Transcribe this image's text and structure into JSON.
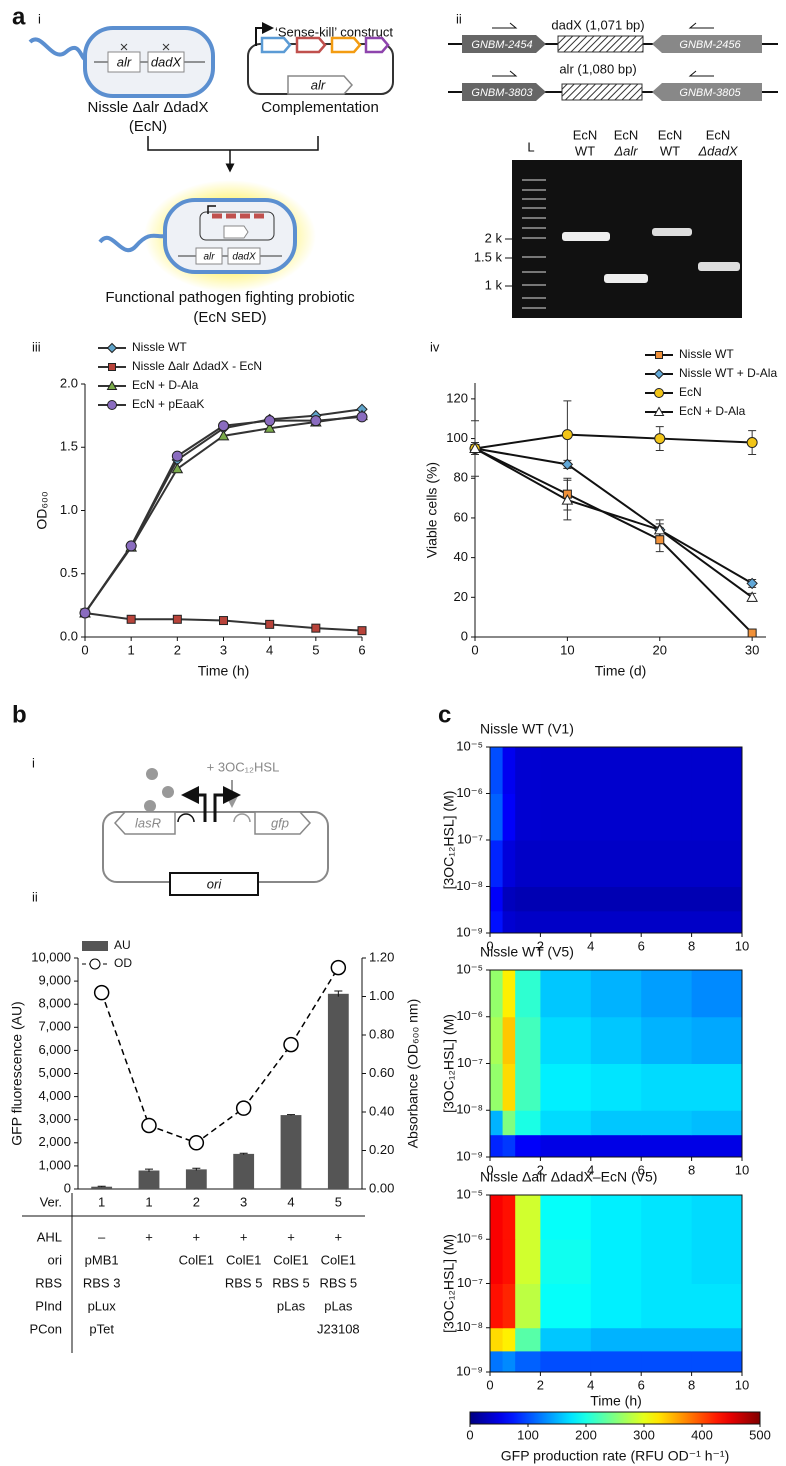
{
  "figure": {
    "panel_labels": [
      "a",
      "b",
      "c"
    ],
    "a_i": {
      "label": "i",
      "chromosome_genes": [
        "alr",
        "dadX"
      ],
      "strain": "Nissle Δalr ΔdadX",
      "strain_short": "(EcN)",
      "construct": "‘Sense-kill’ construct",
      "construct_gene": "alr",
      "complementation": "Complementation",
      "result_genes": [
        "alr",
        "dadX"
      ],
      "result": "Functional pathogen fighting probiotic",
      "result_short": "(EcN SED)"
    },
    "a_ii": {
      "label": "ii",
      "loci": [
        {
          "insert": "dadX (1,071 bp)",
          "left": "GNBM-2454",
          "right": "GNBM-2456"
        },
        {
          "insert": "alr (1,080 bp)",
          "left": "GNBM-3803",
          "right": "GNBM-3805"
        }
      ],
      "lanes": [
        [
          "L"
        ],
        [
          "EcN",
          "WT"
        ],
        [
          "EcN",
          "Δalr"
        ],
        [
          "EcN",
          "WT"
        ],
        [
          "EcN",
          "ΔdadX"
        ]
      ],
      "markers": [
        "2 k",
        "1.5 k",
        "1 k"
      ]
    },
    "a_iii": "iii",
    "a_iv": "iv",
    "b_i": {
      "label": "i",
      "inducer": "+ 3OC₁₂HSL",
      "genes": [
        "lasR",
        "gfp"
      ],
      "origin": "ori"
    },
    "b_ii": "ii"
  },
  "chart_data": [
    {
      "type": "line",
      "xlabel": "Time (h)",
      "ylabel": "OD₆₀₀",
      "legend": "upper left",
      "line_color": "#333333",
      "x": [
        0,
        1,
        2,
        3,
        4,
        5,
        6
      ],
      "xlim": [
        0,
        6
      ],
      "xticks": [
        0,
        1,
        2,
        3,
        4,
        5,
        6
      ],
      "ylim": [
        0,
        2
      ],
      "yticks": [
        {
          "value": 0,
          "label": "0.0"
        },
        0.5,
        {
          "value": 1,
          "label": "1.0"
        },
        1.5,
        {
          "value": 2,
          "label": "2.0"
        }
      ],
      "series": [
        {
          "name": "Nissle WT",
          "color": "#5fa3c9",
          "marker": "diamond",
          "values": [
            0.19,
            0.72,
            1.4,
            1.65,
            1.72,
            1.75,
            1.8
          ]
        },
        {
          "name": "Nissle Δalr ΔdadX - EcN",
          "color": "#b8433a",
          "marker": "square",
          "values": [
            0.19,
            0.14,
            0.14,
            0.13,
            0.1,
            0.07,
            0.05
          ]
        },
        {
          "name": "EcN + D-Ala",
          "color": "#7aab4a",
          "marker": "triangle",
          "values": [
            0.19,
            0.71,
            1.33,
            1.59,
            1.65,
            1.7,
            1.75
          ]
        },
        {
          "name": "EcN + pEaaK",
          "color": "#8a6cbf",
          "marker": "circle",
          "values": [
            0.19,
            0.72,
            1.43,
            1.67,
            1.71,
            1.71,
            1.74
          ]
        }
      ]
    },
    {
      "type": "line",
      "xlabel": "Time (d)",
      "ylabel": "Viable cells (%)",
      "legend": "upper right",
      "line_color": "#111111",
      "x": [
        0,
        10,
        20,
        30
      ],
      "xlim": [
        0,
        31.5
      ],
      "xticks": [
        0,
        10,
        20,
        30
      ],
      "ylim": [
        0,
        128
      ],
      "yticks": [
        0,
        20,
        40,
        60,
        80,
        100,
        120
      ],
      "series": [
        {
          "name": "Nissle WT",
          "color": "#f0913a",
          "marker": "square",
          "values": [
            95,
            72,
            49,
            2
          ],
          "errors": [
            3,
            8,
            6,
            1
          ]
        },
        {
          "name": "Nissle WT + D-Ala",
          "color": "#62a8d8",
          "marker": "diamond",
          "values": [
            95,
            87,
            54,
            27
          ],
          "errors": [
            2,
            2,
            3,
            2
          ]
        },
        {
          "name": "EcN",
          "color": "#f2c518",
          "marker": "circle",
          "values": [
            95,
            102,
            100,
            98
          ],
          "errors": [
            14,
            17,
            6,
            6
          ]
        },
        {
          "name": "EcN + D-Ala",
          "color": "#ffffff",
          "marker": "triangle",
          "values": [
            95,
            69,
            54,
            20
          ],
          "errors": [
            3,
            10,
            5,
            2
          ]
        }
      ]
    },
    {
      "type": "bar",
      "xlabel": "Ver.",
      "ylabel": "GFP fluorescence (AU)",
      "y2label": "Absorbance (OD₆₀₀ nm)",
      "legend": "upper left",
      "categories": [
        "1",
        "1",
        "2",
        "3",
        "4",
        "5"
      ],
      "ylim": [
        0,
        10000
      ],
      "yticks": [
        0,
        {
          "value": 1000,
          "label": "1,000"
        },
        {
          "value": 2000,
          "label": "2,000"
        },
        {
          "value": 3000,
          "label": "3,000"
        },
        {
          "value": 4000,
          "label": "4,000"
        },
        {
          "value": 5000,
          "label": "5,000"
        },
        {
          "value": 6000,
          "label": "6,000"
        },
        {
          "value": 7000,
          "label": "7,000"
        },
        {
          "value": 8000,
          "label": "8,000"
        },
        {
          "value": 9000,
          "label": "9,000"
        },
        {
          "value": 10000,
          "label": "10,000"
        }
      ],
      "y2lim": [
        0,
        1.2
      ],
      "y2ticks": [
        {
          "value": 0,
          "label": "0.00"
        },
        {
          "value": 0.2,
          "label": "0.20"
        },
        {
          "value": 0.4,
          "label": "0.40"
        },
        {
          "value": 0.6,
          "label": "0.60"
        },
        {
          "value": 0.8,
          "label": "0.80"
        },
        {
          "value": 1,
          "label": "1.00"
        },
        {
          "value": 1.2,
          "label": "1.20"
        }
      ],
      "series": [
        {
          "name": "AU",
          "color": "#555555",
          "values": [
            100,
            800,
            850,
            1520,
            3200,
            8450
          ],
          "errors": [
            20,
            60,
            50,
            30,
            20,
            120
          ]
        },
        {
          "name": "OD",
          "color": "#000000",
          "axis": "y2",
          "dashed": true,
          "values": [
            1.02,
            0.33,
            0.24,
            0.42,
            0.75,
            1.15
          ]
        }
      ],
      "table": {
        "rows": [
          {
            "label": "AHL",
            "cells": [
              "–",
              "+",
              "+",
              "+",
              "+",
              "+"
            ]
          },
          {
            "label": "ori",
            "cells": [
              "pMB1",
              null,
              "ColE1",
              "ColE1",
              "ColE1",
              "ColE1"
            ]
          },
          {
            "label": "RBS",
            "cells": [
              "RBS 3",
              null,
              null,
              "RBS 5",
              "RBS 5",
              "RBS 5"
            ]
          },
          {
            "label": "PInd",
            "cells": [
              "pLux",
              null,
              null,
              null,
              "pLas",
              "pLas"
            ]
          },
          {
            "label": "PCon",
            "cells": [
              "pTet",
              null,
              null,
              null,
              null,
              "J23108"
            ]
          }
        ]
      }
    },
    {
      "type": "heatmap",
      "title": "Nissle WT (V1)",
      "ylabel": "[3OC₁₂HSL] (M)",
      "yscale": "log",
      "colormap": "jet",
      "clim": [
        0,
        500
      ],
      "xlim": [
        0,
        10
      ],
      "xticks": [
        0,
        2,
        4,
        6,
        8,
        10
      ],
      "ylim": [
        1e-09,
        1e-05
      ],
      "yticks": [
        {
          "value": 1e-09,
          "label": "10⁻⁹"
        },
        {
          "value": 1e-08,
          "label": "10⁻⁸"
        },
        {
          "value": 1e-07,
          "label": "10⁻⁷"
        },
        {
          "value": 1e-06,
          "label": "10⁻⁶"
        },
        {
          "value": 1e-05,
          "label": "10⁻⁵"
        }
      ],
      "xbins": [
        0,
        0.5,
        1,
        2,
        4,
        6,
        8,
        10
      ],
      "ybins": [
        1e-09,
        3e-09,
        1e-08,
        1e-07,
        1e-06,
        1e-05
      ],
      "z": [
        [
          70,
          40,
          35,
          35,
          35,
          35,
          35
        ],
        [
          60,
          30,
          25,
          25,
          25,
          25,
          25
        ],
        [
          80,
          45,
          35,
          35,
          35,
          35,
          35
        ],
        [
          110,
          60,
          40,
          38,
          38,
          38,
          38
        ],
        [
          100,
          55,
          40,
          38,
          38,
          38,
          38
        ]
      ]
    },
    {
      "type": "heatmap",
      "title": "Nissle WT (V5)",
      "ylabel": "[3OC₁₂HSL] (M)",
      "yscale": "log",
      "colormap": "jet",
      "clim": [
        0,
        500
      ],
      "xlim": [
        0,
        10
      ],
      "xticks": [
        0,
        2,
        4,
        6,
        8,
        10
      ],
      "ylim": [
        1e-09,
        1e-05
      ],
      "yticks": [
        {
          "value": 1e-09,
          "label": "10⁻⁹"
        },
        {
          "value": 1e-08,
          "label": "10⁻⁸"
        },
        {
          "value": 1e-07,
          "label": "10⁻⁷"
        },
        {
          "value": 1e-06,
          "label": "10⁻⁶"
        },
        {
          "value": 1e-05,
          "label": "10⁻⁵"
        }
      ],
      "xbins": [
        0,
        0.5,
        1,
        2,
        4,
        6,
        8,
        10
      ],
      "ybins": [
        1e-09,
        3e-09,
        1e-08,
        1e-07,
        1e-06,
        1e-05
      ],
      "z": [
        [
          80,
          90,
          60,
          50,
          50,
          50,
          50
        ],
        [
          150,
          250,
          200,
          170,
          160,
          160,
          155
        ],
        [
          260,
          330,
          220,
          180,
          175,
          170,
          170
        ],
        [
          270,
          340,
          220,
          170,
          160,
          150,
          145
        ],
        [
          260,
          320,
          210,
          160,
          150,
          140,
          130
        ]
      ]
    },
    {
      "type": "heatmap",
      "title": "Nissle Δalr ΔdadX–EcN (V5)",
      "ylabel": "[3OC₁₂HSL] (M)",
      "xlabel": "Time (h)",
      "yscale": "log",
      "colormap": "jet",
      "clim": [
        0,
        500
      ],
      "xlim": [
        0,
        10
      ],
      "xticks": [
        0,
        2,
        4,
        6,
        8,
        10
      ],
      "ylim": [
        1e-09,
        1e-05
      ],
      "yticks": [
        {
          "value": 1e-09,
          "label": "10⁻⁹"
        },
        {
          "value": 1e-08,
          "label": "10⁻⁸"
        },
        {
          "value": 1e-07,
          "label": "10⁻⁷"
        },
        {
          "value": 1e-06,
          "label": "10⁻⁶"
        },
        {
          "value": 1e-05,
          "label": "10⁻⁵"
        }
      ],
      "xbins": [
        0,
        0.5,
        1,
        2,
        4,
        6,
        8,
        10
      ],
      "ybins": [
        1e-09,
        3e-09,
        1e-08,
        1e-07,
        1e-06,
        1e-05
      ],
      "z": [
        [
          120,
          130,
          110,
          100,
          100,
          100,
          100
        ],
        [
          330,
          320,
          230,
          160,
          150,
          150,
          150
        ],
        [
          430,
          420,
          280,
          190,
          180,
          175,
          175
        ],
        [
          440,
          430,
          290,
          195,
          180,
          175,
          170
        ],
        [
          440,
          430,
          290,
          190,
          180,
          175,
          170
        ]
      ],
      "cticks": [
        0,
        100,
        200,
        300,
        400,
        500
      ],
      "clabel": "GFP production rate (RFU OD⁻¹ h⁻¹)"
    }
  ]
}
